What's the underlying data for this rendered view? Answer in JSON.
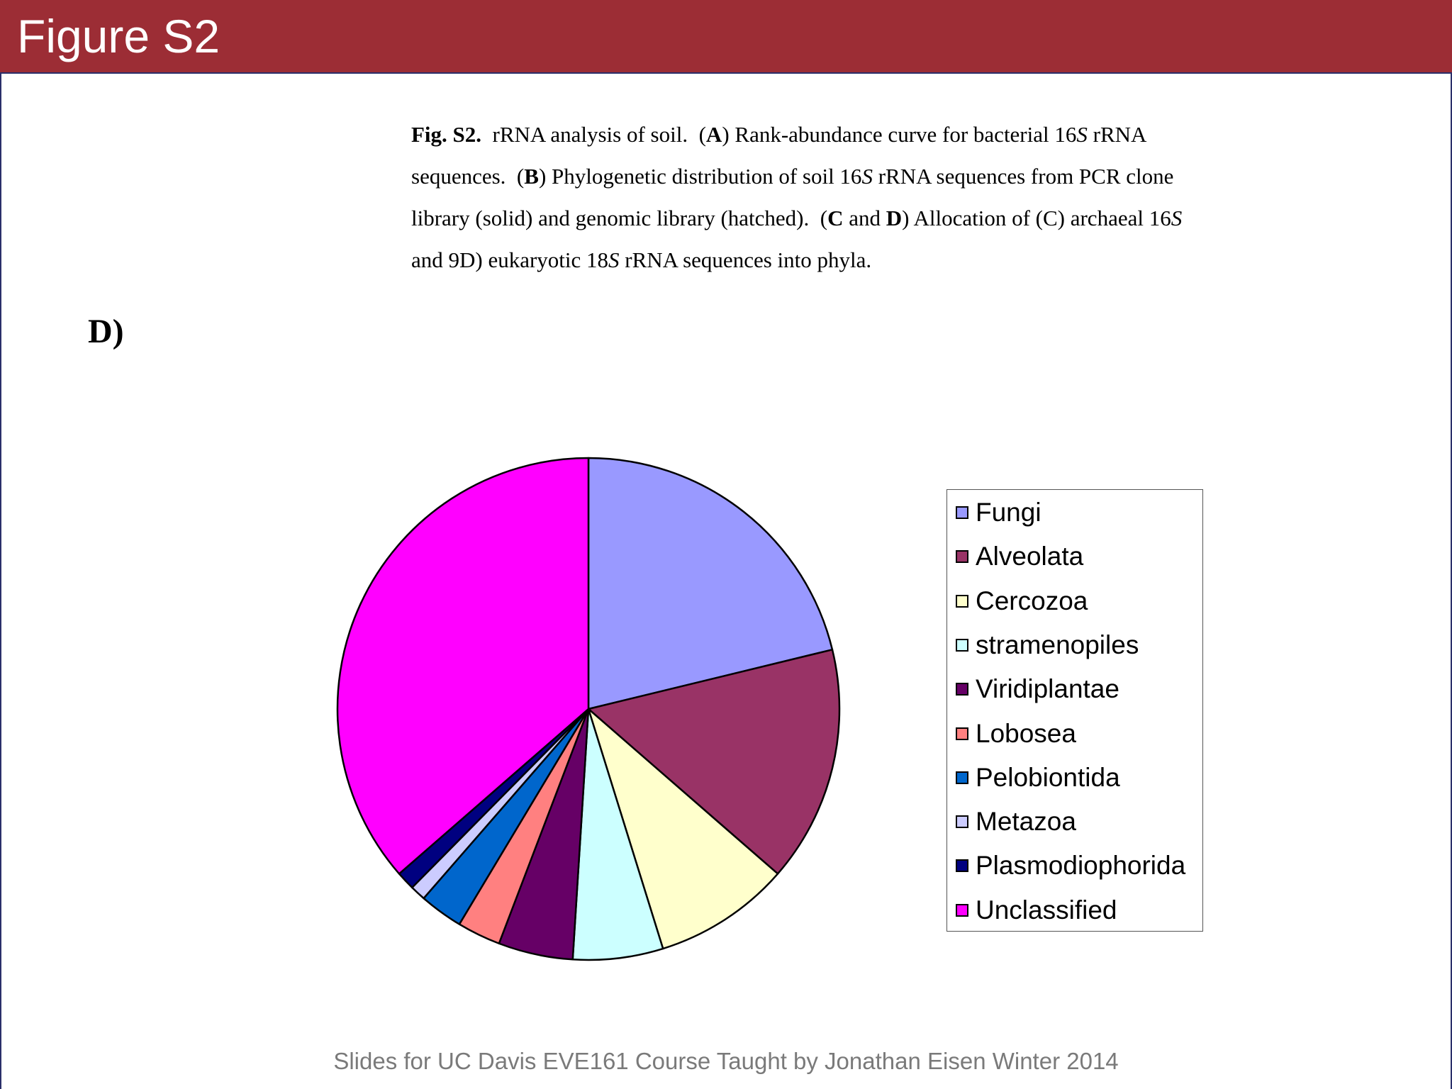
{
  "slide": {
    "title": "Figure S2",
    "footer": "Slides for UC Davis EVE161 Course Taught by Jonathan Eisen Winter 2014"
  },
  "caption": {
    "lines": [
      [
        {
          "t": "Fig. S2.",
          "s": "b"
        },
        {
          "t": "  rRNA analysis of soil.  ("
        },
        {
          "t": "A",
          "s": "b"
        },
        {
          "t": ") Rank-abundance curve for bacterial 16"
        },
        {
          "t": "S",
          "s": "i"
        },
        {
          "t": " rRNA"
        }
      ],
      [
        {
          "t": "sequences.  ("
        },
        {
          "t": "B",
          "s": "b"
        },
        {
          "t": ") Phylogenetic distribution of soil 16"
        },
        {
          "t": "S",
          "s": "i"
        },
        {
          "t": " rRNA sequences from PCR clone"
        }
      ],
      [
        {
          "t": "library (solid) and genomic library (hatched).  ("
        },
        {
          "t": "C",
          "s": "b"
        },
        {
          "t": " and "
        },
        {
          "t": "D",
          "s": "b"
        },
        {
          "t": ") Allocation of (C) archaeal 16"
        },
        {
          "t": "S",
          "s": "i"
        }
      ],
      [
        {
          "t": "and 9D) eukaryotic 18"
        },
        {
          "t": "S",
          "s": "i"
        },
        {
          "t": " rRNA sequences into phyla."
        }
      ]
    ]
  },
  "panel_label": "D)",
  "chart_data": {
    "type": "pie",
    "title": "",
    "legend_position": "right",
    "categories": [
      "Fungi",
      "Alveolata",
      "Cercozoa",
      "stramenopiles",
      "Viridiplantae",
      "Lobosea",
      "Pelobiontida",
      "Metazoa",
      "Plasmodiophorida",
      "Unclassified"
    ],
    "values": [
      21.2,
      15.2,
      8.8,
      5.8,
      4.8,
      2.8,
      2.8,
      1.0,
      1.2,
      36.4
    ],
    "colors": [
      "#9999ff",
      "#993366",
      "#ffffcc",
      "#ccffff",
      "#660066",
      "#ff8080",
      "#0066cc",
      "#ccccff",
      "#000080",
      "#ff00ff"
    ]
  }
}
